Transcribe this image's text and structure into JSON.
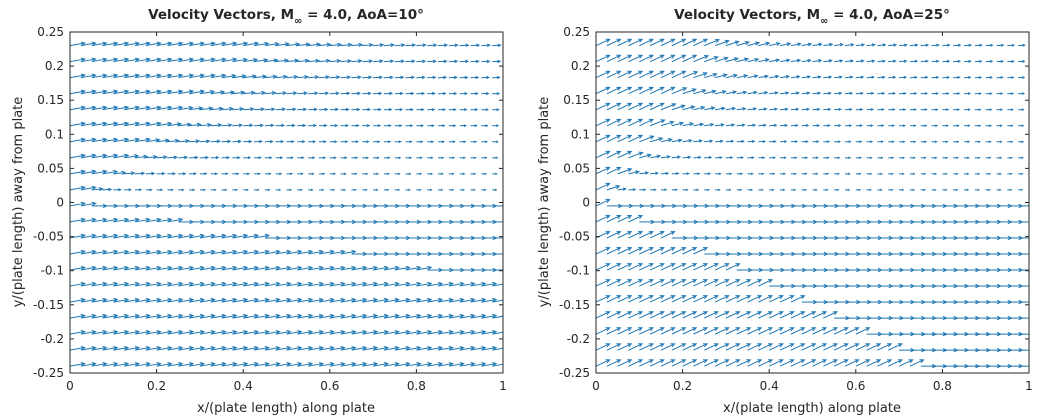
{
  "figure": {
    "arrow_color": "#1f77b4",
    "axis_color": "#262626"
  },
  "chart_data": [
    {
      "type": "quiver",
      "title": "Velocity Vectors, M",
      "title_subscript": "∞",
      "title_suffix": " = 4.0, AoA=10°",
      "xlabel": "x/(plate length) along plate",
      "ylabel": "y/(plate length) away from plate",
      "xlim": [
        0,
        1
      ],
      "ylim": [
        -0.25,
        0.25
      ],
      "xticks": [
        0,
        0.2,
        0.4,
        0.6,
        0.8,
        1
      ],
      "xticklabels": [
        "0",
        "0.2",
        "0.4",
        "0.6",
        "0.8",
        "1"
      ],
      "yticks": [
        0.25,
        0.2,
        0.15,
        0.1,
        0.05,
        0,
        -0.05,
        -0.1,
        -0.15,
        -0.2,
        -0.25
      ],
      "yticklabels": [
        "0.25",
        "0.2",
        "0.15",
        "0.1",
        "0.05",
        "0",
        "-0.05",
        "-0.1",
        "-0.15",
        "-0.2",
        "-0.25"
      ],
      "angle_of_attack_deg": 10,
      "field": {
        "x_start": 0.0,
        "x_step": 0.025,
        "x_count": 41,
        "y_start": -0.24,
        "y_step": 0.0235,
        "y_count": 21,
        "shock_slope": 0.12,
        "expansion_slope": 0.58
      }
    },
    {
      "type": "quiver",
      "title": "Velocity Vectors, M",
      "title_subscript": "∞",
      "title_suffix": " = 4.0, AoA=25°",
      "xlabel": "x/(plate length) along plate",
      "ylabel": "y/(plate length) away from plate",
      "xlim": [
        0,
        1
      ],
      "ylim": [
        -0.25,
        0.25
      ],
      "xticks": [
        0,
        0.2,
        0.4,
        0.6,
        0.8,
        1
      ],
      "xticklabels": [
        "0",
        "0.2",
        "0.4",
        "0.6",
        "0.8",
        "1"
      ],
      "yticks": [
        0.25,
        0.2,
        0.15,
        0.1,
        0.05,
        0,
        -0.05,
        -0.1,
        -0.15,
        -0.2,
        -0.25
      ],
      "yticklabels": [
        "0.25",
        "0.2",
        "0.15",
        "0.1",
        "0.05",
        "0",
        "-0.05",
        "-0.1",
        "-0.15",
        "-0.2",
        "-0.25"
      ],
      "angle_of_attack_deg": 25,
      "field": {
        "x_start": 0.0,
        "x_step": 0.025,
        "x_count": 41,
        "y_start": -0.24,
        "y_step": 0.0235,
        "y_count": 21,
        "shock_slope": 0.32,
        "expansion_slope": 0.95
      }
    }
  ]
}
